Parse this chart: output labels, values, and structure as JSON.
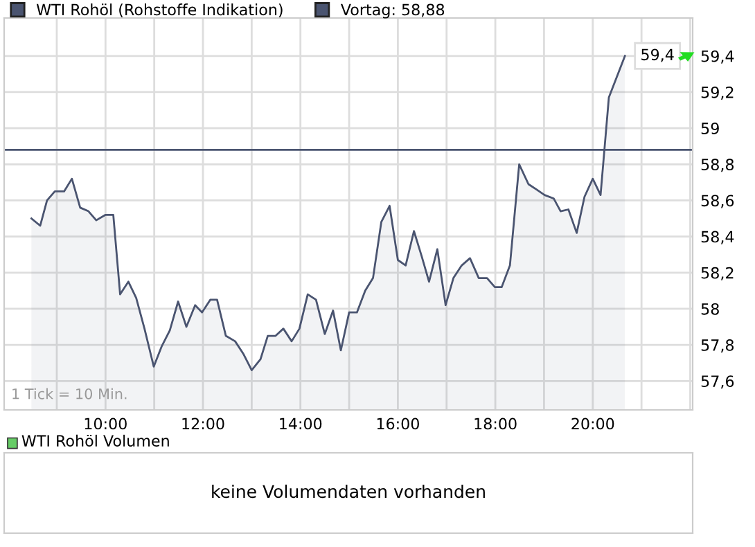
{
  "chart_data": [
    {
      "type": "area",
      "legend": "top left",
      "grid": true,
      "x": [
        8.48,
        8.66,
        8.8,
        8.96,
        9.15,
        9.31,
        9.48,
        9.65,
        9.81,
        10.0,
        10.16,
        10.3,
        10.47,
        10.63,
        10.8,
        10.99,
        11.15,
        11.32,
        11.49,
        11.66,
        11.84,
        11.98,
        12.15,
        12.29,
        12.47,
        12.66,
        12.83,
        13.0,
        13.18,
        13.33,
        13.49,
        13.65,
        13.82,
        13.98,
        14.15,
        14.32,
        14.5,
        14.67,
        14.83,
        15.0,
        15.16,
        15.33,
        15.49,
        15.66,
        15.83,
        16.0,
        16.16,
        16.33,
        16.49,
        16.64,
        16.81,
        16.98,
        17.14,
        17.31,
        17.48,
        17.66,
        17.83,
        17.99,
        18.13,
        18.3,
        18.49,
        18.68,
        18.85,
        19.01,
        19.2,
        19.34,
        19.5,
        19.67,
        19.83,
        20.0,
        20.16,
        20.33,
        20.66
      ],
      "series": [
        {
          "name": "WTI Rohöl (Rohstoffe Indikation)",
          "color": "#4a5470",
          "values": [
            58.5,
            58.46,
            58.6,
            58.65,
            58.65,
            58.72,
            58.56,
            58.54,
            58.49,
            58.52,
            58.52,
            58.08,
            58.15,
            58.06,
            57.89,
            57.68,
            57.79,
            57.88,
            58.04,
            57.9,
            58.02,
            57.98,
            58.05,
            58.05,
            57.85,
            57.82,
            57.75,
            57.66,
            57.72,
            57.85,
            57.85,
            57.89,
            57.82,
            57.89,
            58.08,
            58.05,
            57.86,
            57.99,
            57.77,
            57.98,
            57.98,
            58.1,
            58.17,
            58.48,
            58.57,
            58.27,
            58.24,
            58.43,
            58.29,
            58.15,
            58.33,
            58.02,
            58.17,
            58.24,
            58.28,
            58.17,
            58.17,
            58.12,
            58.12,
            58.24,
            58.8,
            58.69,
            58.66,
            58.63,
            58.61,
            58.54,
            58.55,
            58.42,
            58.62,
            58.72,
            58.63,
            59.17,
            59.4
          ]
        }
      ],
      "xlim": [
        7.92,
        22.05
      ],
      "xticks": [
        {
          "value": 9,
          "label": null
        },
        {
          "value": 10,
          "label": "10:00"
        },
        {
          "value": 11,
          "label": null
        },
        {
          "value": 12,
          "label": "12:00"
        },
        {
          "value": 13,
          "label": null
        },
        {
          "value": 14,
          "label": "14:00"
        },
        {
          "value": 15,
          "label": null
        },
        {
          "value": 16,
          "label": "16:00"
        },
        {
          "value": 17,
          "label": null
        },
        {
          "value": 18,
          "label": "18:00"
        },
        {
          "value": 19,
          "label": null
        },
        {
          "value": 20,
          "label": "20:00"
        },
        {
          "value": 21,
          "label": null
        },
        {
          "value": 22,
          "label": null
        }
      ],
      "ylim": [
        57.44,
        59.61
      ],
      "yticks": [
        {
          "value": 57.6,
          "label": "57,6"
        },
        {
          "value": 57.8,
          "label": "57,8"
        },
        {
          "value": 58,
          "label": "58"
        },
        {
          "value": 58.2,
          "label": "58,2"
        },
        {
          "value": 58.4,
          "label": "58,4"
        },
        {
          "value": 58.6,
          "label": "58,6"
        },
        {
          "value": 58.8,
          "label": "58,8"
        },
        {
          "value": 59,
          "label": "59"
        },
        {
          "value": 59.2,
          "label": "59,2"
        },
        {
          "value": 59.4,
          "label": "59,4"
        }
      ],
      "ref_lines": [
        {
          "axis": "y",
          "value": 58.88,
          "label": "Vortag: 58,88",
          "color": "#4a5470"
        }
      ],
      "annotations": [
        {
          "text": "59,4",
          "x": 20.66,
          "y": 59.4
        },
        "1 Tick = 10 Min."
      ]
    },
    {
      "type": "other",
      "title": "WTI Rohöl Volumen",
      "color": "#66cc66",
      "annotations": [
        "keine Volumendaten vorhanden"
      ]
    }
  ]
}
